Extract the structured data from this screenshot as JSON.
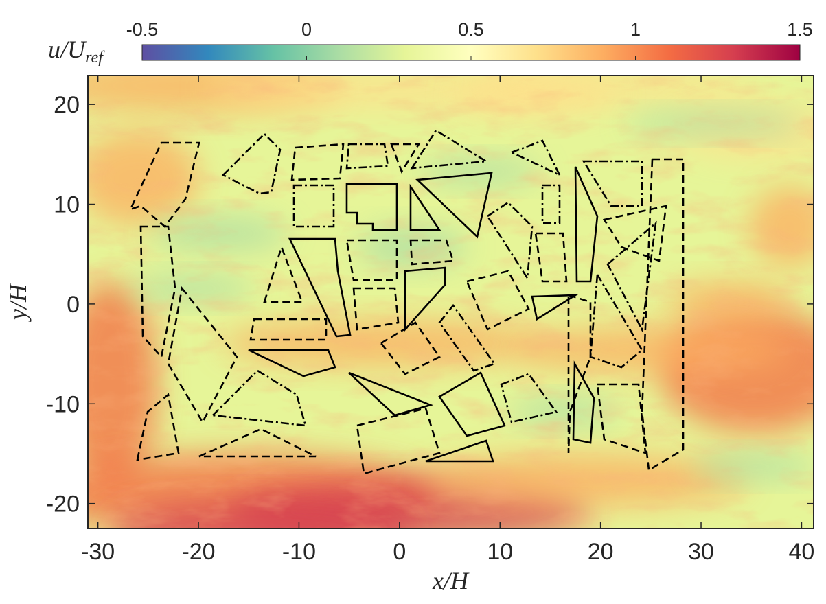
{
  "chart_data": {
    "type": "field",
    "xlabel": {
      "main": "x/H"
    },
    "ylabel": {
      "main": "y/H"
    },
    "colorbar_label": {
      "main": "u/U",
      "sub": "ref"
    },
    "xlim": [
      -31,
      41.2
    ],
    "xticks": [
      -30,
      -20,
      -10,
      0,
      10,
      20,
      30,
      40
    ],
    "ylim": [
      -22.5,
      22.9
    ],
    "yticks": [
      -20,
      -10,
      0,
      10,
      20
    ],
    "clim": [
      -0.5,
      1.5
    ],
    "cticks": [
      -0.5,
      0,
      0.5,
      1,
      1.5
    ],
    "colormap": [
      "#5e4fa2",
      "#3288bd",
      "#66c2a5",
      "#abdda4",
      "#e6f598",
      "#ffffbf",
      "#fee08b",
      "#fdae61",
      "#f46d43",
      "#d53e4f",
      "#9e0142"
    ]
  }
}
